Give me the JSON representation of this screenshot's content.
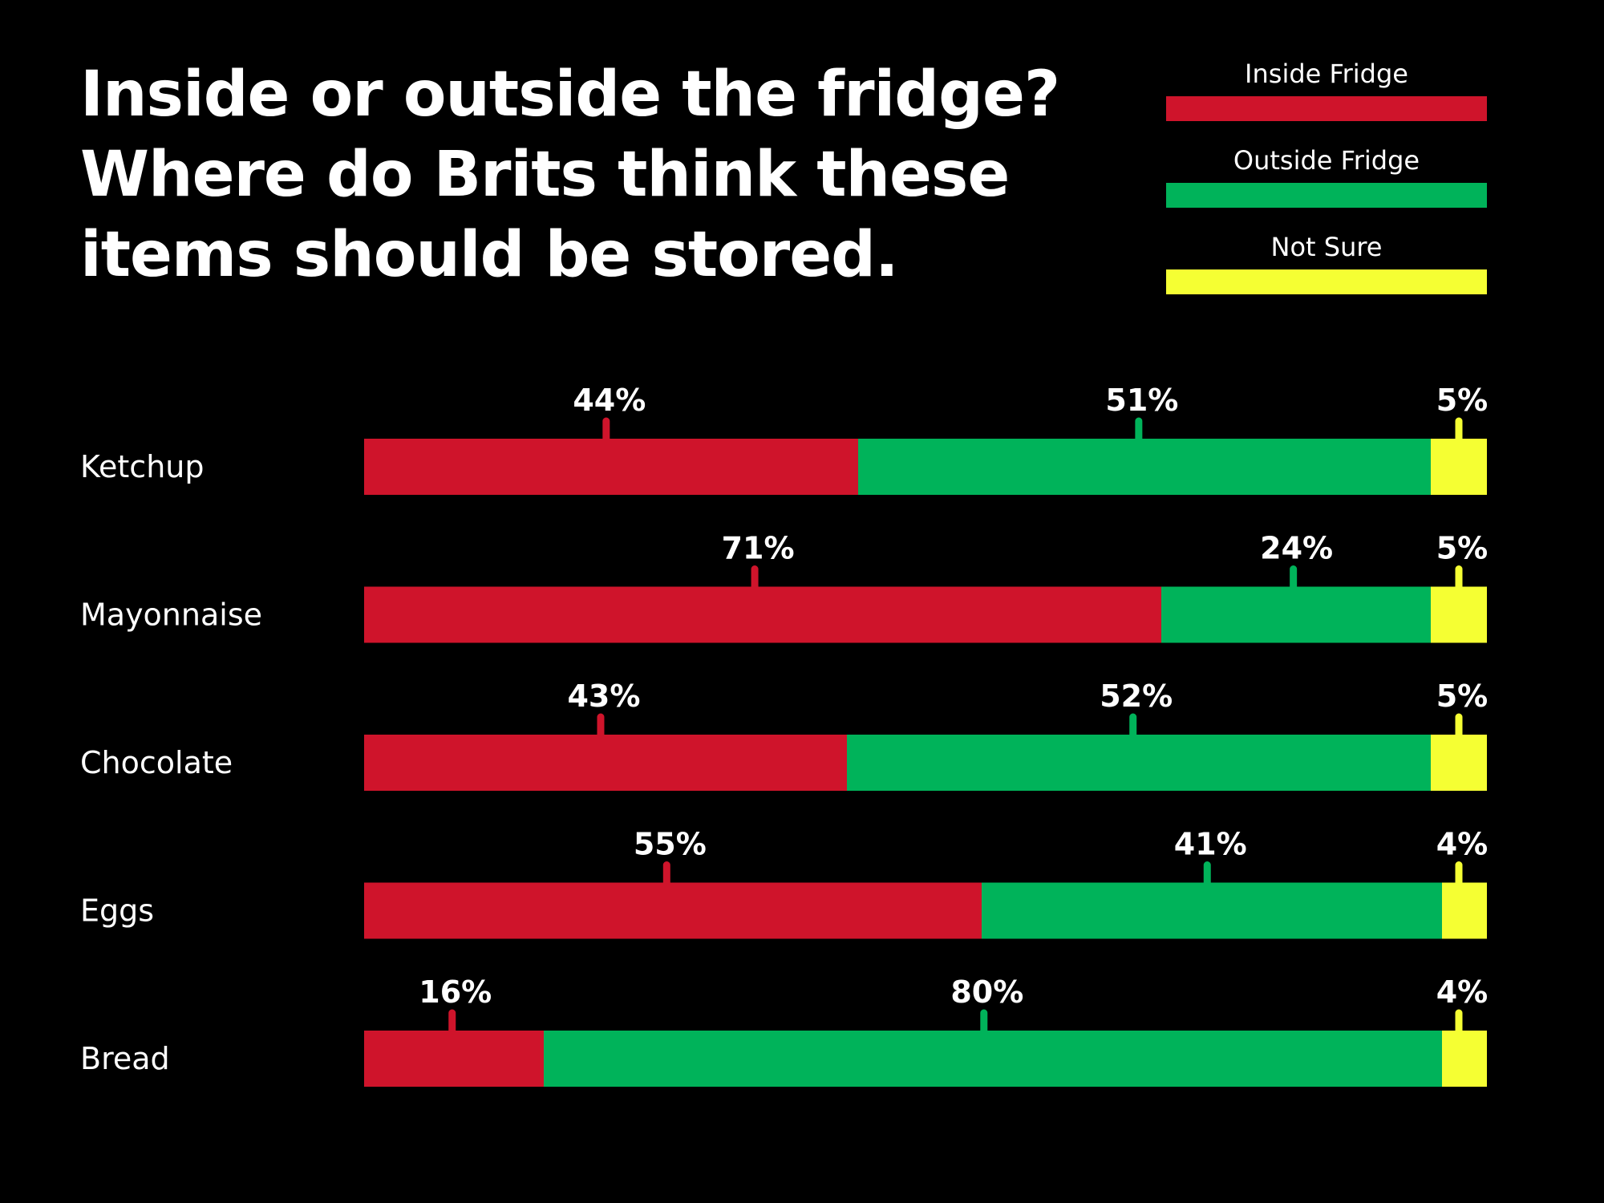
{
  "chart_data": {
    "type": "bar",
    "orientation": "horizontal",
    "stacked": true,
    "title": [
      "Inside or outside the fridge?",
      "Where do Brits think these",
      "items should be stored."
    ],
    "categories": [
      "Ketchup",
      "Mayonnaise",
      "Chocolate",
      "Eggs",
      "Bread"
    ],
    "series": [
      {
        "name": "Inside Fridge",
        "color": "#cf142b",
        "values": [
          44,
          71,
          43,
          55,
          16
        ],
        "labels": [
          "44%",
          "71%",
          "43%",
          "55%",
          "16%"
        ]
      },
      {
        "name": "Outside Fridge",
        "color": "#00b35a",
        "values": [
          51,
          24,
          52,
          41,
          80
        ],
        "labels": [
          "51%",
          "24%",
          "52%",
          "41%",
          "80%"
        ]
      },
      {
        "name": "Not Sure",
        "color": "#f5ff33",
        "values": [
          5,
          5,
          5,
          4,
          4
        ],
        "labels": [
          "5%",
          "5%",
          "5%",
          "4%",
          "4%"
        ]
      }
    ],
    "xlim": [
      0,
      100
    ],
    "legend": "top-right",
    "grid": false
  }
}
